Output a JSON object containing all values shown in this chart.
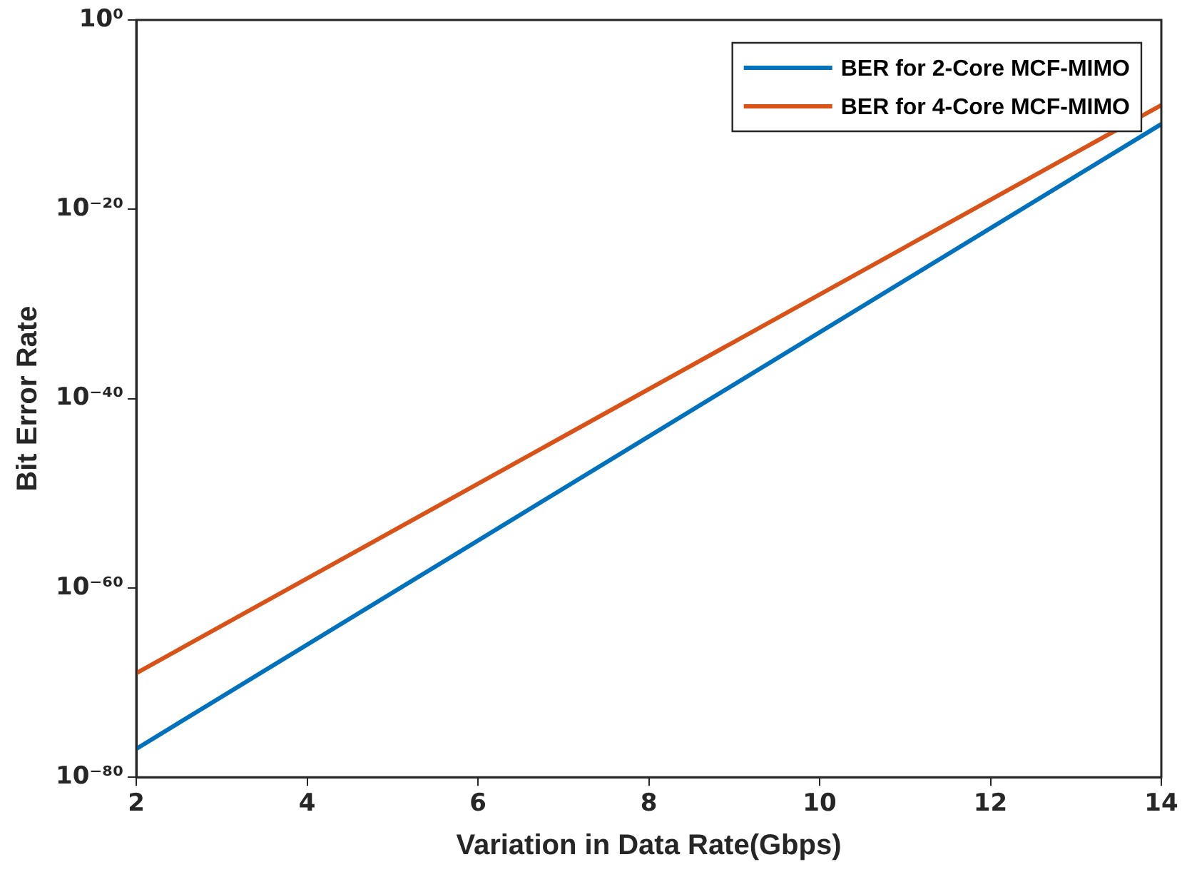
{
  "chart_data": {
    "type": "line",
    "xlabel": "Variation in Data Rate(Gbps)",
    "ylabel": "Bit Error Rate",
    "x": [
      2,
      14
    ],
    "series": [
      {
        "name": "BER for 2-Core MCF-MIMO",
        "color": "#0072bd",
        "values": [
          1e-77,
          1e-11
        ]
      },
      {
        "name": "BER for 4-Core MCF-MIMO",
        "color": "#d95319",
        "values": [
          1e-69,
          1e-09
        ]
      }
    ],
    "log": "y",
    "xlim": [
      2,
      14
    ],
    "xticks": [
      2,
      4,
      6,
      8,
      10,
      12,
      14
    ],
    "ylim": [
      1e-80,
      1
    ],
    "yticks": [
      {
        "value": 1,
        "label": "10⁰"
      },
      {
        "value": 1e-20,
        "label": "10⁻²⁰"
      },
      {
        "value": 1e-40,
        "label": "10⁻⁴⁰"
      },
      {
        "value": 1e-60,
        "label": "10⁻⁶⁰"
      },
      {
        "value": 1e-80,
        "label": "10⁻⁸⁰"
      }
    ],
    "grid": false,
    "legend": "top right",
    "marker": "none",
    "line_style": "solid"
  }
}
